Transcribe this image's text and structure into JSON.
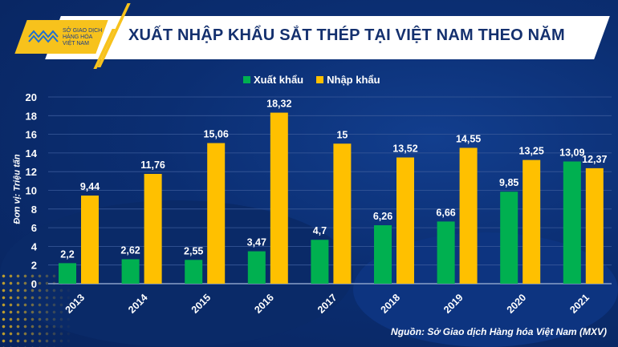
{
  "logo": {
    "lines": [
      "SỞ GIAO DỊCH",
      "HÀNG HÓA",
      "VIỆT NAM"
    ]
  },
  "colors": {
    "background": "#0b2e72",
    "export": "#00b050",
    "import": "#ffc000",
    "title": "#14306e",
    "accent": "#f7c21c"
  },
  "chart_data": {
    "type": "bar",
    "title": "XUẤT NHẬP KHẨU SẮT THÉP TẠI VIỆT NAM THEO NĂM",
    "ylabel": "Đơn vị: Triệu tấn",
    "xlabel": "",
    "ylim": [
      0,
      20
    ],
    "yticks": [
      0,
      2,
      4,
      6,
      8,
      10,
      12,
      14,
      16,
      18,
      20
    ],
    "grid": true,
    "legend": "top-center",
    "categories": [
      "2013",
      "2014",
      "2015",
      "2016",
      "2017",
      "2018",
      "2019",
      "2020",
      "2021"
    ],
    "series": [
      {
        "name": "Xuất khẩu",
        "color": "#00b050",
        "values": [
          2.2,
          2.62,
          2.55,
          3.47,
          4.7,
          6.26,
          6.66,
          9.85,
          13.09
        ],
        "labels": [
          "2,2",
          "2,62",
          "2,55",
          "3,47",
          "4,7",
          "6,26",
          "6,66",
          "9,85",
          "13,09"
        ]
      },
      {
        "name": "Nhập khẩu",
        "color": "#ffc000",
        "values": [
          9.44,
          11.76,
          15.06,
          18.32,
          15,
          13.52,
          14.55,
          13.25,
          12.37
        ],
        "labels": [
          "9,44",
          "11,76",
          "15,06",
          "18,32",
          "15",
          "13,52",
          "14,55",
          "13,25",
          "12,37"
        ]
      }
    ],
    "source": "Nguồn: Sở Giao dịch Hàng hóa Việt Nam (MXV)"
  }
}
